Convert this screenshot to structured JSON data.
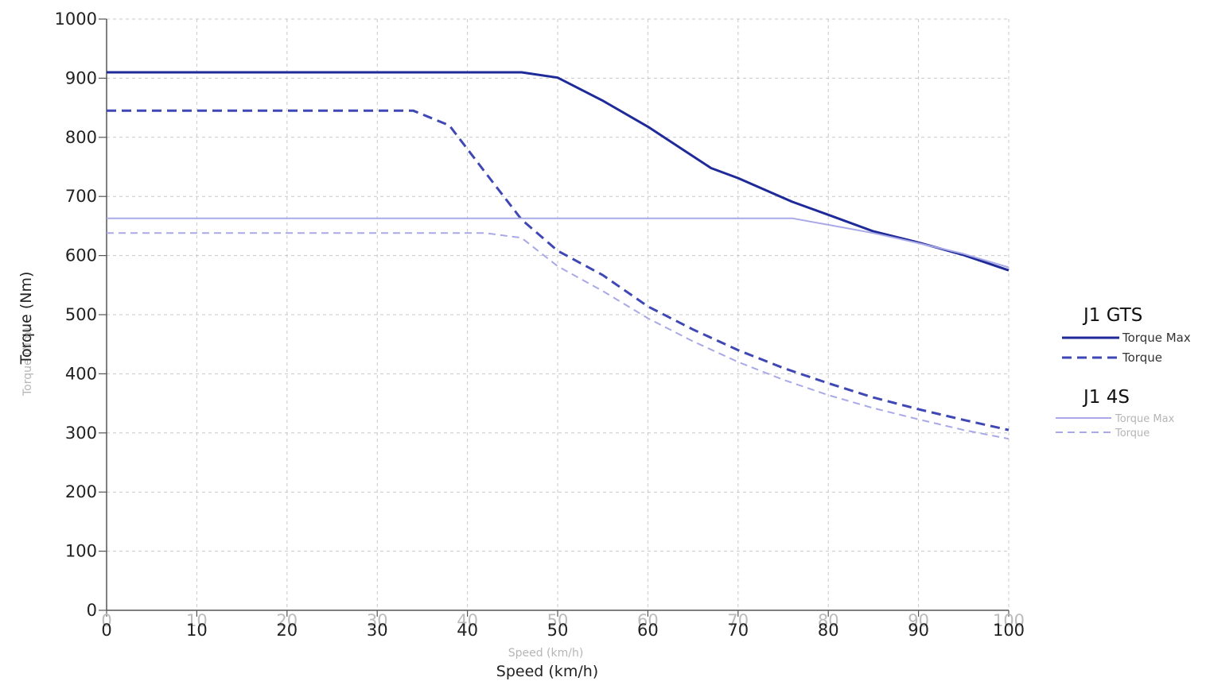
{
  "chart_data": {
    "type": "line",
    "title": "",
    "xlabel": "Speed (km/h)",
    "ylabel": "Torque (Nm)",
    "xlim": [
      0,
      100
    ],
    "ylim": [
      0,
      1000
    ],
    "x_ticks": [
      0,
      10,
      20,
      30,
      40,
      50,
      60,
      70,
      80,
      90,
      100
    ],
    "y_ticks": [
      0,
      100,
      200,
      300,
      400,
      500,
      600,
      700,
      800,
      900,
      1000
    ],
    "grid": true,
    "legend_position": "right",
    "colors": {
      "gts_max": "#1f2a99",
      "gts_torque": "#3f47b5",
      "s4_max": "#a9a9e8",
      "s4_torque": "#a9a9e8"
    },
    "legend": [
      {
        "group": "J1 GTS",
        "entries": [
          "Torque Max",
          "Torque"
        ]
      },
      {
        "group": "J1 4S",
        "entries": [
          "Torque Max",
          "Torque"
        ]
      }
    ],
    "series": [
      {
        "group": "J1 GTS",
        "name": "Torque Max",
        "style": "solid",
        "color_key": "gts_max",
        "points": [
          [
            0,
            910
          ],
          [
            46,
            910
          ],
          [
            50,
            901
          ],
          [
            55,
            862
          ],
          [
            60,
            818
          ],
          [
            65,
            768
          ],
          [
            67,
            748
          ],
          [
            70,
            731
          ],
          [
            76,
            691
          ],
          [
            80,
            669
          ],
          [
            85,
            641
          ],
          [
            90,
            622
          ],
          [
            95,
            601
          ],
          [
            100,
            575
          ]
        ]
      },
      {
        "group": "J1 GTS",
        "name": "Torque",
        "style": "dashed",
        "color_key": "gts_torque",
        "points": [
          [
            0,
            845
          ],
          [
            34,
            845
          ],
          [
            38,
            820
          ],
          [
            42,
            740
          ],
          [
            46,
            661
          ],
          [
            50,
            608
          ],
          [
            55,
            567
          ],
          [
            60,
            514
          ],
          [
            65,
            475
          ],
          [
            70,
            440
          ],
          [
            75,
            410
          ],
          [
            80,
            384
          ],
          [
            85,
            360
          ],
          [
            90,
            340
          ],
          [
            95,
            322
          ],
          [
            100,
            305
          ]
        ]
      },
      {
        "group": "J1 4S",
        "name": "Torque Max",
        "style": "solid",
        "color_key": "s4_max",
        "points": [
          [
            0,
            663
          ],
          [
            76,
            663
          ],
          [
            80,
            652
          ],
          [
            85,
            638
          ],
          [
            90,
            621
          ],
          [
            95,
            603
          ],
          [
            100,
            580
          ]
        ]
      },
      {
        "group": "J1 4S",
        "name": "Torque",
        "style": "dashed",
        "color_key": "s4_torque",
        "points": [
          [
            0,
            638
          ],
          [
            42,
            638
          ],
          [
            46,
            630
          ],
          [
            50,
            582
          ],
          [
            55,
            540
          ],
          [
            60,
            494
          ],
          [
            65,
            455
          ],
          [
            70,
            420
          ],
          [
            75,
            390
          ],
          [
            80,
            364
          ],
          [
            85,
            342
          ],
          [
            90,
            323
          ],
          [
            95,
            305
          ],
          [
            100,
            290
          ]
        ]
      }
    ]
  }
}
